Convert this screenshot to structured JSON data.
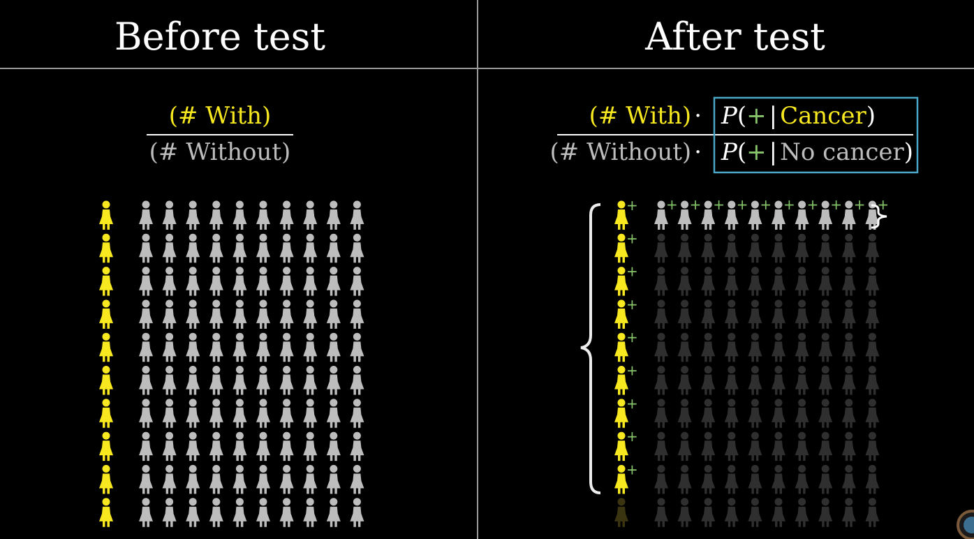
{
  "headers": {
    "left": "Before test",
    "right": "After test"
  },
  "left_fraction": {
    "numerator": "(# With)",
    "denominator": "(# Without)"
  },
  "right_fraction": {
    "numerator_count": "(# With)",
    "denominator_count": "(# Without)",
    "dot": "·",
    "p": "P",
    "open_paren": "(",
    "plus": "+",
    "bar": "|",
    "given_with": "Cancer",
    "given_without": "No cancer",
    "close_paren": ")"
  },
  "colors": {
    "with": "#f7e81f",
    "without": "#bdbdbd",
    "without_dimmed": "#2f2f2f",
    "positive_plus": "#86c56b",
    "highlight_box": "#4aa7c9",
    "divider": "#9a9a9a"
  },
  "population": {
    "with_count": 10,
    "without_columns": 10,
    "rows": 10,
    "positive_with_rows": 9,
    "positive_without_rows": 1
  },
  "icons": {
    "person": "person-icon",
    "brace": "curly-brace-icon",
    "logo": "pi-logo-icon"
  }
}
